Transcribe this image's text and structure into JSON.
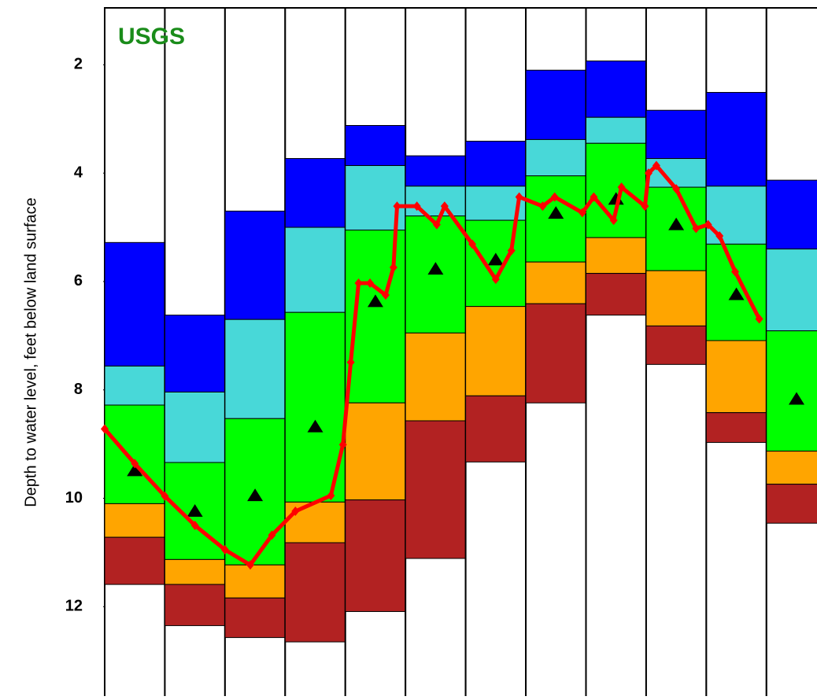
{
  "chart_data": {
    "type": "percentile-band",
    "logo": "USGS",
    "y_label": "Depth to water level, feet below land surface",
    "categories": [
      null,
      null,
      null,
      null,
      null,
      null,
      null,
      null,
      null,
      null,
      null,
      null
    ],
    "xlim": [
      0,
      11.84
    ],
    "ylim": [
      0.95,
      13.65
    ],
    "y_inverted": true,
    "yticks": [
      2,
      4,
      6,
      8,
      10,
      12
    ],
    "band_colors": [
      "#0000ff",
      "#48d8d8",
      "#00ff00",
      "#ffa500",
      "#b22222"
    ],
    "boundaries": [
      [
        5.28,
        6.62,
        4.7,
        3.73,
        3.12,
        3.68,
        3.41,
        2.1,
        1.93,
        2.84,
        2.51,
        4.13
      ],
      [
        7.56,
        8.04,
        6.7,
        5.0,
        3.86,
        4.24,
        4.24,
        3.38,
        2.97,
        3.73,
        4.24,
        5.4
      ],
      [
        8.28,
        9.34,
        8.53,
        6.57,
        5.05,
        4.79,
        4.87,
        4.05,
        3.45,
        4.26,
        5.31,
        6.91
      ],
      [
        10.1,
        11.13,
        11.23,
        10.07,
        8.24,
        6.95,
        6.46,
        5.64,
        5.19,
        5.8,
        7.09,
        9.13
      ],
      [
        10.72,
        11.59,
        11.84,
        10.82,
        10.03,
        8.57,
        8.11,
        6.41,
        5.85,
        6.82,
        8.42,
        9.74
      ],
      [
        11.59,
        12.35,
        12.57,
        12.65,
        12.09,
        11.11,
        9.33,
        8.24,
        6.62,
        7.53,
        8.97,
        10.46
      ]
    ],
    "medians": [
      9.49,
      10.24,
      9.95,
      8.68,
      6.37,
      5.77,
      5.6,
      4.74,
      4.48,
      4.95,
      6.24,
      8.17
    ],
    "median_color": "#000000",
    "levels": {
      "color": "#ff0000",
      "x": [
        0,
        0.5,
        1.0,
        1.5,
        2.0,
        2.42,
        2.78,
        3.17,
        3.76,
        3.96,
        4.09,
        4.22,
        4.41,
        4.67,
        4.8,
        4.86,
        5.19,
        5.52,
        5.65,
        6.11,
        6.5,
        6.76,
        6.89,
        7.28,
        7.48,
        7.94,
        8.13,
        8.46,
        8.59,
        8.98,
        9.04,
        9.17,
        9.5,
        9.83,
        10.03,
        10.22,
        10.48,
        10.88
      ],
      "values": [
        8.72,
        9.36,
        9.96,
        10.5,
        10.95,
        11.23,
        10.68,
        10.24,
        9.95,
        9.01,
        7.49,
        6.03,
        6.03,
        6.25,
        5.74,
        4.61,
        4.61,
        4.95,
        4.61,
        5.31,
        5.96,
        5.43,
        4.44,
        4.61,
        4.44,
        4.73,
        4.44,
        4.87,
        4.26,
        4.61,
        4.0,
        3.86,
        4.29,
        5.02,
        4.95,
        5.16,
        5.82,
        6.69
      ]
    }
  }
}
